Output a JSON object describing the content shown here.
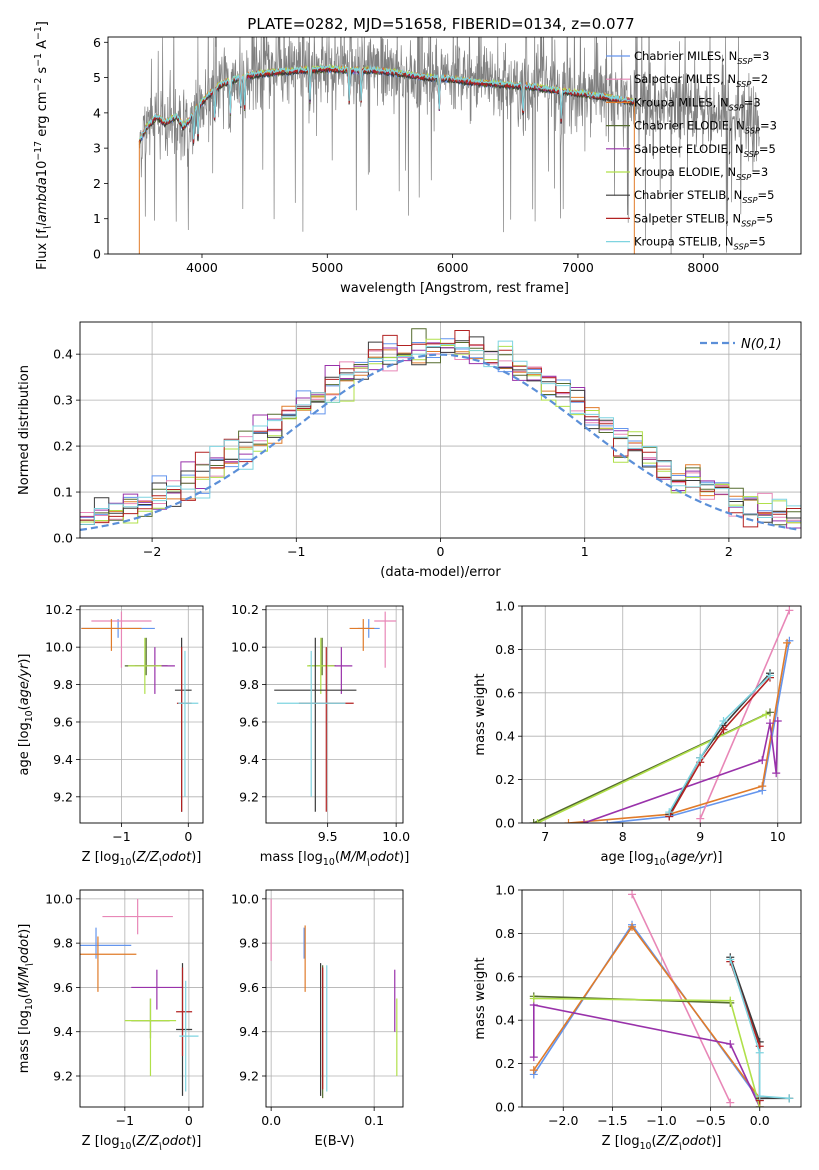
{
  "figure": {
    "title": "PLATE=0282, MJD=51658, FIBERID=0134, z=0.077"
  },
  "series_colors": [
    "#6495ed",
    "#e887b7",
    "#e07b2a",
    "#556b2f",
    "#9932aa",
    "#b0e04a",
    "#3a3a3a",
    "#b22222",
    "#7fd4e0"
  ],
  "legend_entries": [
    "Chabrier MILES, N$_{SSP}$=3",
    "Salpeter MILES, N$_{SSP}$=2",
    "Kroupa MILES, N$_{SSP}$=3",
    "Chabrier ELODIE, N$_{SSP}$=3",
    "Salpeter ELODIE, N$_{SSP}$=5",
    "Kroupa ELODIE, N$_{SSP}$=3",
    "Chabrier STELIB, N$_{SSP}$=5",
    "Salpeter STELIB, N$_{SSP}$=5",
    "Kroupa STELIB, N$_{SSP}$=5"
  ],
  "chart_data": [
    {
      "id": "spectrum",
      "type": "line",
      "title": "PLATE=0282, MJD=51658, FIBERID=0134, z=0.077",
      "xlabel": "wavelength [Angstrom, rest frame]",
      "ylabel": "Flux [f$_\\lambda$10$^{-17}$ erg cm$^{-2}$ s$^{-1}$ A$^{-1}$]",
      "xlim": [
        3250,
        8780
      ],
      "ylim": [
        0,
        6.15
      ],
      "xticks": [
        4000,
        5000,
        6000,
        7000,
        8000
      ],
      "yticks": [
        0,
        1,
        2,
        3,
        4,
        5,
        6
      ],
      "grid": false,
      "legend_position": "top-right",
      "data_color": "#808080",
      "data_range": [
        3500,
        8450
      ],
      "model_range": [
        3500,
        7450
      ],
      "continuum": {
        "x": [
          3500,
          3560,
          3640,
          3700,
          3800,
          3850,
          3900,
          3950,
          4050,
          4150,
          4300,
          4450,
          4600,
          4800,
          5000,
          5200,
          5400,
          5600,
          5800,
          6000,
          6200,
          6400,
          6600,
          6800,
          7000,
          7200,
          7450,
          7700,
          8000,
          8200,
          8450
        ],
        "y": [
          3.2,
          3.6,
          3.9,
          3.7,
          3.9,
          3.6,
          3.8,
          4.1,
          4.5,
          4.8,
          5.0,
          5.1,
          5.15,
          5.2,
          5.25,
          5.2,
          5.2,
          5.1,
          5.0,
          4.95,
          4.85,
          4.8,
          4.75,
          4.65,
          4.55,
          4.45,
          4.3,
          4.15,
          3.95,
          3.85,
          3.6
        ]
      },
      "absorption_lines": [
        3934,
        3969,
        4102,
        4226,
        4308,
        4341,
        4861,
        5175,
        5270,
        5893,
        6563,
        6867,
        7600
      ]
    },
    {
      "id": "residuals",
      "type": "step",
      "xlabel": "(data-model)/error",
      "ylabel": "Normed distribution",
      "xlim": [
        -2.5,
        2.5
      ],
      "ylim": [
        0,
        0.47
      ],
      "xticks": [
        -2,
        -1,
        0,
        1,
        2
      ],
      "yticks": [
        0.0,
        0.1,
        0.2,
        0.3,
        0.4
      ],
      "grid": true,
      "legend_position": "top-right",
      "reference": {
        "label": "$\\mathcal{N}(0,1)$",
        "mean": 0,
        "sigma": 1,
        "color": "#5b8fd8"
      },
      "bin_width": 0.1,
      "bin_start": -2.5
    },
    {
      "id": "age_vs_Z",
      "type": "errorbar",
      "xlabel": "Z [log$_{10}$($Z/Z_\\odot$)]",
      "ylabel": "age  [log$_{10}$($age/yr$)]",
      "xlim": [
        -1.62,
        0.22
      ],
      "ylim": [
        9.06,
        10.22
      ],
      "xticks": [
        -1,
        0
      ],
      "yticks": [
        9.2,
        9.4,
        9.6,
        9.8,
        10.0,
        10.2
      ],
      "grid": true,
      "points": [
        {
          "s": 0,
          "x": -1.05,
          "xerr": [
            0.55,
            0.55
          ],
          "y": 10.1,
          "yerr": [
            0.05,
            0.05
          ]
        },
        {
          "s": 1,
          "x": -1.0,
          "xerr": [
            0.45,
            0.45
          ],
          "y": 10.14,
          "yerr": [
            0.25,
            0.05
          ]
        },
        {
          "s": 2,
          "x": -1.15,
          "xerr": [
            0.45,
            0.45
          ],
          "y": 10.1,
          "yerr": [
            0.12,
            0.05
          ]
        },
        {
          "s": 3,
          "x": -0.63,
          "xerr": [
            0.32,
            0.32
          ],
          "y": 9.9,
          "yerr": [
            0.05,
            0.15
          ]
        },
        {
          "s": 4,
          "x": -0.5,
          "xerr": [
            0.3,
            0.3
          ],
          "y": 9.9,
          "yerr": [
            0.15,
            0.1
          ]
        },
        {
          "s": 5,
          "x": -0.65,
          "xerr": [
            0.25,
            0.25
          ],
          "y": 9.9,
          "yerr": [
            0.15,
            0.15
          ]
        },
        {
          "s": 6,
          "x": -0.1,
          "xerr": [
            0.1,
            0.15
          ],
          "y": 9.77,
          "yerr": [
            0.65,
            0.28
          ]
        },
        {
          "s": 7,
          "x": -0.1,
          "xerr": [
            0.07,
            0.15
          ],
          "y": 9.7,
          "yerr": [
            0.58,
            0.3
          ]
        },
        {
          "s": 8,
          "x": -0.05,
          "xerr": [
            0.1,
            0.2
          ],
          "y": 9.7,
          "yerr": [
            0.5,
            0.28
          ]
        }
      ]
    },
    {
      "id": "age_vs_mass",
      "type": "errorbar",
      "xlabel": "mass [log$_{10}$($M/M_\\odot$)]",
      "ylabel": "",
      "xlim": [
        9.05,
        10.05
      ],
      "ylim": [
        9.06,
        10.22
      ],
      "xticks": [
        9.5,
        10.0
      ],
      "yticks": [
        9.2,
        9.4,
        9.6,
        9.8,
        10.0,
        10.2
      ],
      "grid": true,
      "points": [
        {
          "s": 0,
          "x": 9.8,
          "xerr": [
            0.08,
            0.08
          ],
          "y": 10.1,
          "yerr": [
            0.05,
            0.05
          ]
        },
        {
          "s": 1,
          "x": 9.92,
          "xerr": [
            0.08,
            0.08
          ],
          "y": 10.14,
          "yerr": [
            0.25,
            0.05
          ]
        },
        {
          "s": 2,
          "x": 9.76,
          "xerr": [
            0.1,
            0.08
          ],
          "y": 10.1,
          "yerr": [
            0.12,
            0.05
          ]
        },
        {
          "s": 3,
          "x": 9.46,
          "xerr": [
            0.1,
            0.1
          ],
          "y": 9.9,
          "yerr": [
            0.05,
            0.15
          ]
        },
        {
          "s": 4,
          "x": 9.6,
          "xerr": [
            0.08,
            0.08
          ],
          "y": 9.9,
          "yerr": [
            0.15,
            0.1
          ]
        },
        {
          "s": 5,
          "x": 9.45,
          "xerr": [
            0.1,
            0.1
          ],
          "y": 9.9,
          "yerr": [
            0.15,
            0.15
          ]
        },
        {
          "s": 6,
          "x": 9.41,
          "xerr": [
            0.3,
            0.3
          ],
          "y": 9.77,
          "yerr": [
            0.65,
            0.28
          ]
        },
        {
          "s": 7,
          "x": 9.49,
          "xerr": [
            0.2,
            0.2
          ],
          "y": 9.7,
          "yerr": [
            0.58,
            0.3
          ]
        },
        {
          "s": 8,
          "x": 9.38,
          "xerr": [
            0.25,
            0.25
          ],
          "y": 9.7,
          "yerr": [
            0.5,
            0.28
          ]
        }
      ]
    },
    {
      "id": "weight_vs_age",
      "type": "line",
      "xlabel": "age  [log$_{10}$($age/yr$)]",
      "ylabel": "mass weight",
      "xlim": [
        6.7,
        10.3
      ],
      "ylim": [
        0,
        1.0
      ],
      "xticks": [
        7,
        8,
        9,
        10
      ],
      "yticks": [
        0.0,
        0.2,
        0.4,
        0.6,
        0.8,
        1.0
      ],
      "grid": true,
      "series": [
        {
          "s": 0,
          "x": [
            7.8,
            8.6,
            9.8,
            10.15
          ],
          "y": [
            0.0,
            0.03,
            0.15,
            0.84
          ]
        },
        {
          "s": 1,
          "x": [
            9.0,
            10.15
          ],
          "y": [
            0.02,
            0.98
          ]
        },
        {
          "s": 2,
          "x": [
            7.3,
            8.6,
            9.8,
            10.12
          ],
          "y": [
            0.0,
            0.04,
            0.17,
            0.83
          ]
        },
        {
          "s": 3,
          "x": [
            6.85,
            9.9
          ],
          "y": [
            0.0,
            0.51
          ]
        },
        {
          "s": 4,
          "x": [
            7.5,
            9.8,
            9.9,
            9.98,
            10.0
          ],
          "y": [
            0.0,
            0.29,
            0.46,
            0.23,
            0.47
          ]
        },
        {
          "s": 5,
          "x": [
            6.9,
            9.85
          ],
          "y": [
            0.0,
            0.5
          ]
        },
        {
          "s": 6,
          "x": [
            8.6,
            9.0,
            9.3,
            9.9
          ],
          "y": [
            0.04,
            0.3,
            0.45,
            0.69
          ]
        },
        {
          "s": 7,
          "x": [
            8.6,
            9.0,
            9.3,
            9.9
          ],
          "y": [
            0.03,
            0.28,
            0.43,
            0.67
          ]
        },
        {
          "s": 8,
          "x": [
            8.6,
            9.0,
            9.3,
            9.9
          ],
          "y": [
            0.05,
            0.3,
            0.47,
            0.68
          ]
        }
      ]
    },
    {
      "id": "mass_vs_Z",
      "type": "errorbar",
      "xlabel": "Z [log$_{10}$($Z/Z_\\odot$)]",
      "ylabel": "mass [log$_{10}$($M/M_\\odot$)]",
      "xlim": [
        -1.7,
        0.22
      ],
      "ylim": [
        9.06,
        10.04
      ],
      "xticks": [
        -1,
        0
      ],
      "yticks": [
        9.2,
        9.4,
        9.6,
        9.8,
        10.0
      ],
      "grid": true,
      "points": [
        {
          "s": 0,
          "x": -1.45,
          "xerr": [
            0.55,
            0.55
          ],
          "y": 9.79,
          "yerr": [
            0.06,
            0.08
          ]
        },
        {
          "s": 1,
          "x": -0.8,
          "xerr": [
            0.55,
            0.55
          ],
          "y": 9.92,
          "yerr": [
            0.08,
            0.08
          ]
        },
        {
          "s": 2,
          "x": -1.42,
          "xerr": [
            0.6,
            0.6
          ],
          "y": 9.75,
          "yerr": [
            0.17,
            0.08
          ]
        },
        {
          "s": 3,
          "x": -0.6,
          "xerr": [
            0.3,
            0.3
          ],
          "y": 9.45,
          "yerr": [
            0.08,
            0.1
          ]
        },
        {
          "s": 4,
          "x": -0.5,
          "xerr": [
            0.4,
            0.4
          ],
          "y": 9.6,
          "yerr": [
            0.1,
            0.08
          ]
        },
        {
          "s": 5,
          "x": -0.6,
          "xerr": [
            0.4,
            0.4
          ],
          "y": 9.45,
          "yerr": [
            0.25,
            0.1
          ]
        },
        {
          "s": 6,
          "x": -0.1,
          "xerr": [
            0.1,
            0.15
          ],
          "y": 9.41,
          "yerr": [
            0.3,
            0.3
          ]
        },
        {
          "s": 7,
          "x": -0.1,
          "xerr": [
            0.1,
            0.15
          ],
          "y": 9.49,
          "yerr": [
            0.2,
            0.2
          ]
        },
        {
          "s": 8,
          "x": -0.05,
          "xerr": [
            0.1,
            0.2
          ],
          "y": 9.38,
          "yerr": [
            0.25,
            0.25
          ]
        }
      ]
    },
    {
      "id": "mass_vs_ebv",
      "type": "errorbar",
      "xlabel": "E(B-V)",
      "ylabel": "",
      "xlim": [
        -0.005,
        0.128
      ],
      "ylim": [
        9.06,
        10.04
      ],
      "xticks": [
        0.0,
        0.1
      ],
      "yticks": [
        9.2,
        9.4,
        9.6,
        9.8,
        10.0
      ],
      "grid": true,
      "points": [
        {
          "s": 0,
          "x": 0.032,
          "y": 9.79,
          "yerr": [
            0.06,
            0.08
          ]
        },
        {
          "s": 1,
          "x": 0.0,
          "y": 9.92,
          "yerr": [
            0.2,
            0.08
          ]
        },
        {
          "s": 2,
          "x": 0.033,
          "y": 9.75,
          "yerr": [
            0.17,
            0.13
          ]
        },
        {
          "s": 3,
          "x": 0.05,
          "y": 9.45,
          "yerr": [
            0.35,
            0.25
          ]
        },
        {
          "s": 4,
          "x": 0.12,
          "y": 9.6,
          "yerr": [
            0.2,
            0.08
          ]
        },
        {
          "s": 5,
          "x": 0.122,
          "y": 9.45,
          "yerr": [
            0.25,
            0.1
          ]
        },
        {
          "s": 6,
          "x": 0.048,
          "y": 9.41,
          "yerr": [
            0.3,
            0.3
          ]
        },
        {
          "s": 7,
          "x": 0.05,
          "y": 9.49,
          "yerr": [
            0.35,
            0.2
          ]
        },
        {
          "s": 8,
          "x": 0.054,
          "y": 9.38,
          "yerr": [
            0.25,
            0.32
          ]
        }
      ]
    },
    {
      "id": "weight_vs_Z",
      "type": "line",
      "xlabel": "Z [log$_{10}$($Z/Z_\\odot$)]",
      "ylabel": "mass weight",
      "xlim": [
        -2.42,
        0.42
      ],
      "ylim": [
        0,
        1.0
      ],
      "xticks": [
        -2.0,
        -1.5,
        -1.0,
        -0.5,
        0.0
      ],
      "yticks": [
        0.0,
        0.2,
        0.4,
        0.6,
        0.8,
        1.0
      ],
      "grid": true,
      "series": [
        {
          "s": 0,
          "x": [
            -2.3,
            -1.3,
            0.0,
            0.0
          ],
          "y": [
            0.15,
            0.84,
            0.03,
            0.0
          ]
        },
        {
          "s": 1,
          "x": [
            -1.3,
            -0.3
          ],
          "y": [
            0.98,
            0.02
          ]
        },
        {
          "s": 2,
          "x": [
            -2.3,
            -1.3,
            0.0,
            0.0
          ],
          "y": [
            0.17,
            0.83,
            0.04,
            0.0
          ]
        },
        {
          "s": 3,
          "x": [
            -2.3,
            -0.3
          ],
          "y": [
            0.51,
            0.48
          ]
        },
        {
          "s": 4,
          "x": [
            -2.3,
            -2.3,
            -0.3,
            0.0
          ],
          "y": [
            0.23,
            0.47,
            0.29,
            0.0
          ]
        },
        {
          "s": 5,
          "x": [
            -2.3,
            -0.3,
            0.0
          ],
          "y": [
            0.5,
            0.49,
            0.0
          ]
        },
        {
          "s": 6,
          "x": [
            -0.3,
            0.0,
            0.0,
            0.3
          ],
          "y": [
            0.69,
            0.3,
            0.04,
            0.04
          ]
        },
        {
          "s": 7,
          "x": [
            -0.3,
            0.0,
            0.0
          ],
          "y": [
            0.67,
            0.28,
            0.03
          ]
        },
        {
          "s": 8,
          "x": [
            -0.3,
            0.0,
            0.0,
            0.3
          ],
          "y": [
            0.68,
            0.25,
            0.05,
            0.04
          ]
        }
      ]
    }
  ]
}
